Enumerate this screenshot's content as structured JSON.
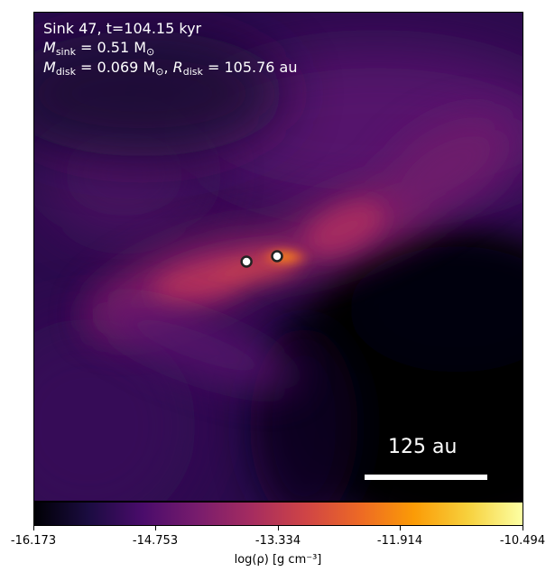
{
  "figure": {
    "info": {
      "sink_title": "Sink 47, t=104.15 kyr",
      "m_sink_label": "M",
      "m_sink_sub": "sink",
      "m_sink_value": " = 0.51 M",
      "m_sun_sub": "⊙",
      "m_disk_label": "M",
      "m_disk_sub": "disk",
      "m_disk_value": " = 0.069 M",
      "m_disk_sun_sub": "⊙",
      "r_disk_sep": ", ",
      "r_disk_label": "R",
      "r_disk_sub": "disk",
      "r_disk_value": " = 105.76 au"
    },
    "scalebar": {
      "label": "125 au"
    },
    "colorbar": {
      "label": "log(ρ) [g cm⁻³]",
      "min": -16.173,
      "max": -10.494,
      "ticks": [
        "-16.173",
        "-14.753",
        "-13.334",
        "-11.914",
        "-10.494"
      ],
      "colormap": "inferno-like",
      "colors": [
        "#000004",
        "#1b0c41",
        "#4a0c6b",
        "#781c6d",
        "#a52c60",
        "#cf4446",
        "#ed6925",
        "#fb9b06",
        "#f7d13d",
        "#fcffa4"
      ]
    },
    "sinks_count": 2
  }
}
